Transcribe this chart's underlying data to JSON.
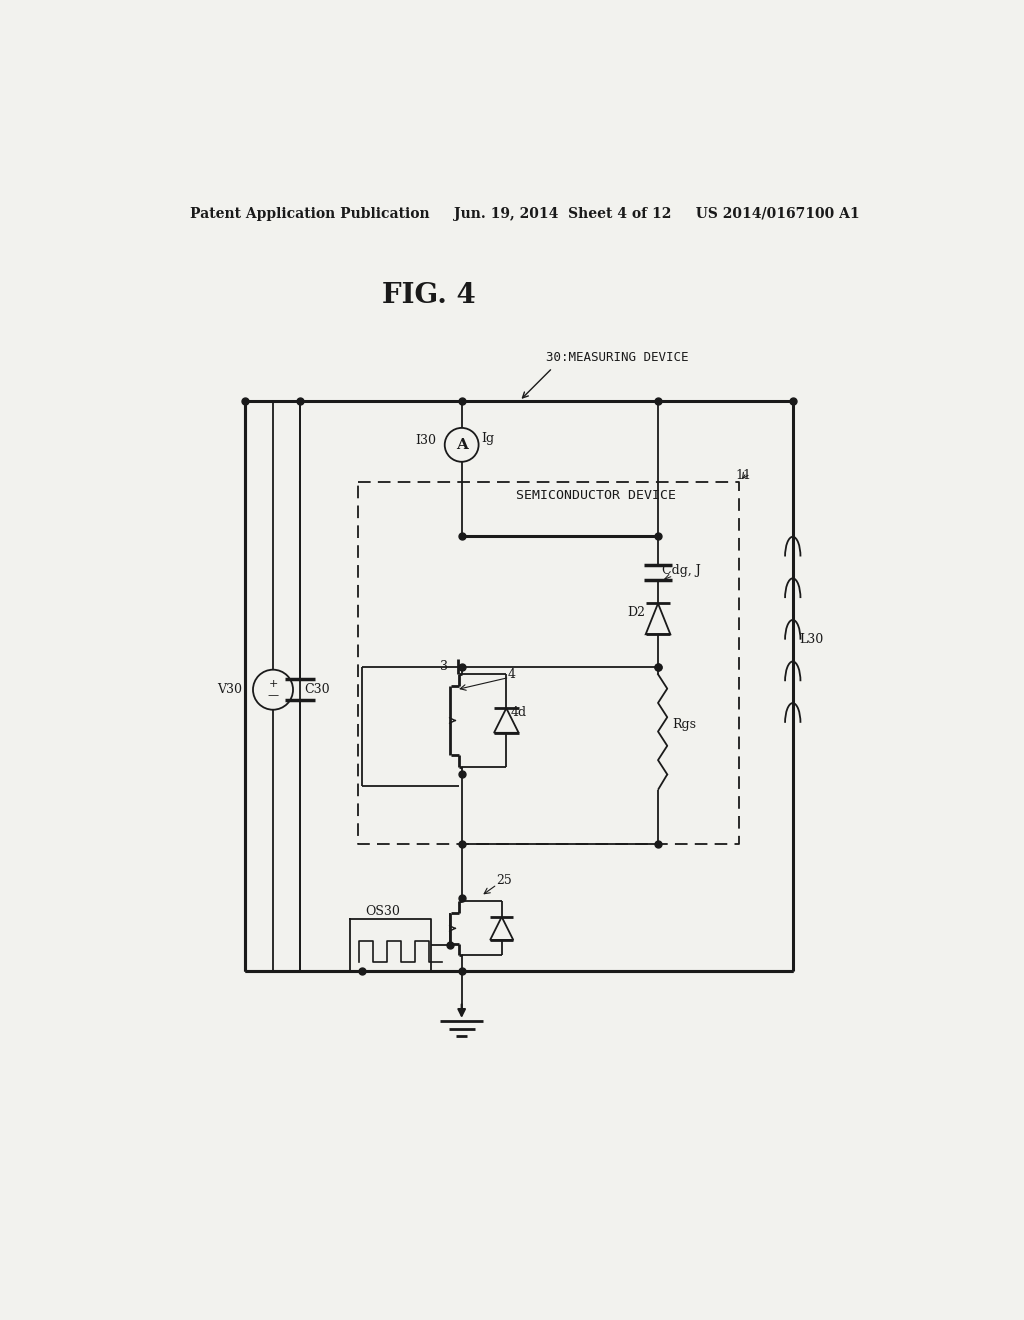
{
  "bg_color": "#f2f2ee",
  "line_color": "#1a1a1a",
  "header_text": "Patent Application Publication     Jun. 19, 2014  Sheet 4 of 12     US 2014/0167100 A1",
  "fig_title": "FIG. 4",
  "label_30_measuring": "30:MEASURING DEVICE",
  "label_11": "11",
  "label_semiconductor": "SEMICONDUCTOR DEVICE",
  "label_I30": "I30",
  "label_Ig": "Ig",
  "label_V30": "V30",
  "label_C30": "C30",
  "label_L30": "L30",
  "label_Cdg": "Cdg, J",
  "label_D2": "D2",
  "label_3": "3",
  "label_4": "4",
  "label_4d": "4d",
  "label_Rgs": "Rgs",
  "label_25": "25",
  "label_OS30": "OS30"
}
